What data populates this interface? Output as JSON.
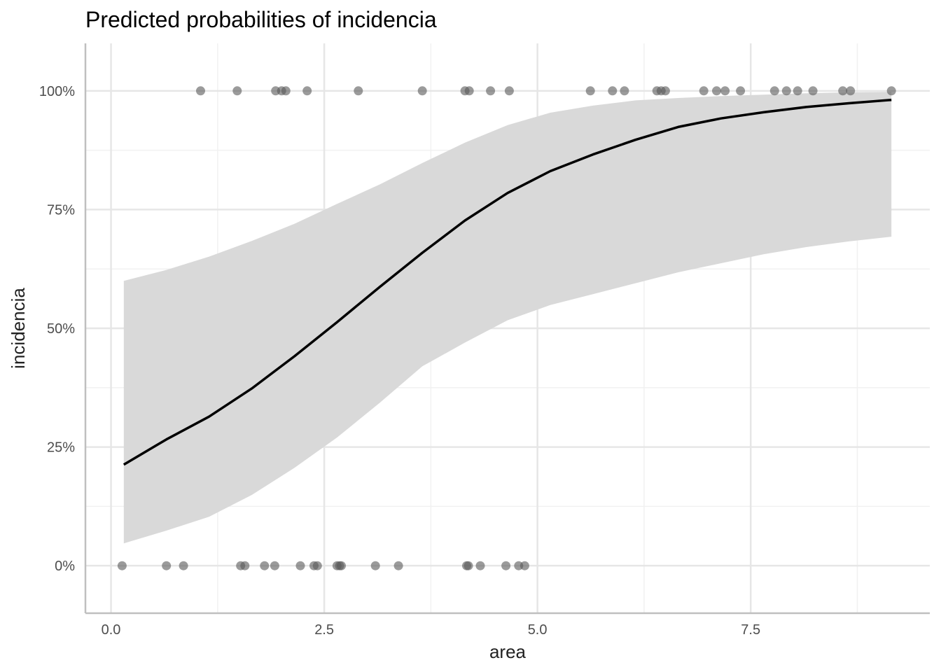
{
  "chart_data": {
    "type": "line",
    "title": "Predicted probabilities of incidencia",
    "xlabel": "area",
    "ylabel": "incidencia",
    "xlim": [
      -0.3,
      9.6
    ],
    "ylim": [
      -0.1,
      1.1
    ],
    "x_ticks": [
      {
        "value": 0.0,
        "label": "0.0"
      },
      {
        "value": 2.5,
        "label": "2.5"
      },
      {
        "value": 5.0,
        "label": "5.0"
      },
      {
        "value": 7.5,
        "label": "7.5"
      }
    ],
    "y_ticks": [
      {
        "value": 0.0,
        "label": "0%"
      },
      {
        "value": 0.25,
        "label": "25%"
      },
      {
        "value": 0.5,
        "label": "50%"
      },
      {
        "value": 0.75,
        "label": "75%"
      },
      {
        "value": 1.0,
        "label": "100%"
      }
    ],
    "grid": true,
    "legend": "none",
    "series": [
      {
        "x": [
          0.15,
          0.65,
          1.15,
          1.65,
          2.15,
          2.65,
          3.15,
          3.65,
          4.15,
          4.65,
          5.15,
          5.65,
          6.15,
          6.65,
          7.15,
          7.65,
          8.15,
          8.65,
          9.15
        ],
        "y": [
          0.213,
          0.266,
          0.314,
          0.373,
          0.441,
          0.513,
          0.587,
          0.659,
          0.727,
          0.785,
          0.831,
          0.866,
          0.897,
          0.924,
          0.942,
          0.955,
          0.966,
          0.974,
          0.981
        ],
        "ci_lower": [
          0.047,
          0.074,
          0.103,
          0.149,
          0.206,
          0.27,
          0.343,
          0.42,
          0.47,
          0.517,
          0.549,
          0.572,
          0.595,
          0.618,
          0.637,
          0.656,
          0.671,
          0.683,
          0.693
        ],
        "ci_upper": [
          0.6,
          0.623,
          0.651,
          0.684,
          0.72,
          0.762,
          0.803,
          0.848,
          0.891,
          0.928,
          0.954,
          0.969,
          0.98,
          0.985,
          0.989,
          0.992,
          0.995,
          0.997,
          0.998
        ]
      }
    ],
    "points": [
      {
        "x": 1.05,
        "y": 1
      },
      {
        "x": 1.48,
        "y": 1
      },
      {
        "x": 1.93,
        "y": 1
      },
      {
        "x": 2.0,
        "y": 1
      },
      {
        "x": 2.05,
        "y": 1
      },
      {
        "x": 2.3,
        "y": 1
      },
      {
        "x": 2.9,
        "y": 1
      },
      {
        "x": 3.65,
        "y": 1
      },
      {
        "x": 4.15,
        "y": 1
      },
      {
        "x": 4.2,
        "y": 1
      },
      {
        "x": 4.45,
        "y": 1
      },
      {
        "x": 4.67,
        "y": 1
      },
      {
        "x": 5.62,
        "y": 1
      },
      {
        "x": 5.88,
        "y": 1
      },
      {
        "x": 6.02,
        "y": 1
      },
      {
        "x": 6.4,
        "y": 1
      },
      {
        "x": 6.45,
        "y": 1
      },
      {
        "x": 6.5,
        "y": 1
      },
      {
        "x": 6.95,
        "y": 1
      },
      {
        "x": 7.1,
        "y": 1
      },
      {
        "x": 7.2,
        "y": 1
      },
      {
        "x": 7.38,
        "y": 1
      },
      {
        "x": 7.78,
        "y": 1
      },
      {
        "x": 7.92,
        "y": 1
      },
      {
        "x": 8.05,
        "y": 1
      },
      {
        "x": 8.23,
        "y": 1
      },
      {
        "x": 8.58,
        "y": 1
      },
      {
        "x": 8.67,
        "y": 1
      },
      {
        "x": 9.15,
        "y": 1
      },
      {
        "x": 0.13,
        "y": 0
      },
      {
        "x": 0.65,
        "y": 0
      },
      {
        "x": 0.85,
        "y": 0
      },
      {
        "x": 1.52,
        "y": 0
      },
      {
        "x": 1.57,
        "y": 0
      },
      {
        "x": 1.8,
        "y": 0
      },
      {
        "x": 1.92,
        "y": 0
      },
      {
        "x": 2.22,
        "y": 0
      },
      {
        "x": 2.38,
        "y": 0
      },
      {
        "x": 2.42,
        "y": 0
      },
      {
        "x": 2.65,
        "y": 0
      },
      {
        "x": 2.68,
        "y": 0
      },
      {
        "x": 2.7,
        "y": 0
      },
      {
        "x": 3.1,
        "y": 0
      },
      {
        "x": 3.37,
        "y": 0
      },
      {
        "x": 4.17,
        "y": 0
      },
      {
        "x": 4.19,
        "y": 0
      },
      {
        "x": 4.33,
        "y": 0
      },
      {
        "x": 4.63,
        "y": 0
      },
      {
        "x": 4.78,
        "y": 0
      },
      {
        "x": 4.85,
        "y": 0
      }
    ],
    "colors": {
      "line": "#000000",
      "ribbon": "#d9d9d9",
      "points": "#595959",
      "grid_major": "#e6e6e6",
      "grid_minor": "#f1f1f1",
      "axis": "#bfbfbf",
      "tick_text": "#4d4d4d",
      "label_text": "#222222"
    }
  }
}
